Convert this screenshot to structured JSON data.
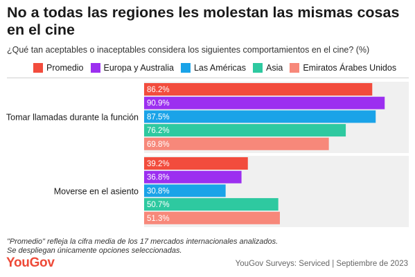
{
  "header": {
    "title": "No a todas las regiones les molestan las mismas cosas en el cine",
    "subtitle": "¿Qué tan aceptables o inaceptables considera los siguientes comportamientos en el cine? (%)"
  },
  "colors": {
    "Promedio": "#f24c3d",
    "Europa y Australia": "#9c2ff0",
    "Las Américas": "#1aa3e8",
    "Asia": "#2ec9a0",
    "Emiratos Árabes Unidos": "#f7887a",
    "panel": "#f0f0f0",
    "rule": "#cfcfcf"
  },
  "chart_data": {
    "type": "bar",
    "orientation": "horizontal",
    "title": "No a todas las regiones les molestan las mismas cosas en el cine",
    "subtitle": "¿Qué tan aceptables o inaceptables considera los siguientes comportamientos en el cine? (%)",
    "categories": [
      "Tomar llamadas durante la función",
      "Moverse en el asiento"
    ],
    "series": [
      {
        "name": "Promedio",
        "values": [
          86.2,
          39.2
        ],
        "labels": [
          "86.2%",
          "39.2%"
        ]
      },
      {
        "name": "Europa y Australia",
        "values": [
          90.9,
          36.8
        ],
        "labels": [
          "90.9%",
          "36.8%"
        ]
      },
      {
        "name": "Las Américas",
        "values": [
          87.5,
          30.8
        ],
        "labels": [
          "87.5%",
          "30.8%"
        ]
      },
      {
        "name": "Asia",
        "values": [
          76.2,
          50.7
        ],
        "labels": [
          "76.2%",
          "50.7%"
        ]
      },
      {
        "name": "Emiratos Árabes Unidos",
        "values": [
          69.8,
          51.3
        ],
        "labels": [
          "69.8%",
          "51.3%"
        ]
      }
    ],
    "xlim": [
      0,
      100
    ],
    "legend": "top",
    "grid": false
  },
  "footer": {
    "note1": "\"Promedio\" refleja la cifra media de los 17 mercados internacionales analizados.",
    "note2": "Se despliegan únicamente opciones seleccionadas.",
    "logo": "YouGov",
    "source": "YouGov Surveys: Serviced | Septiembre de 2023"
  }
}
